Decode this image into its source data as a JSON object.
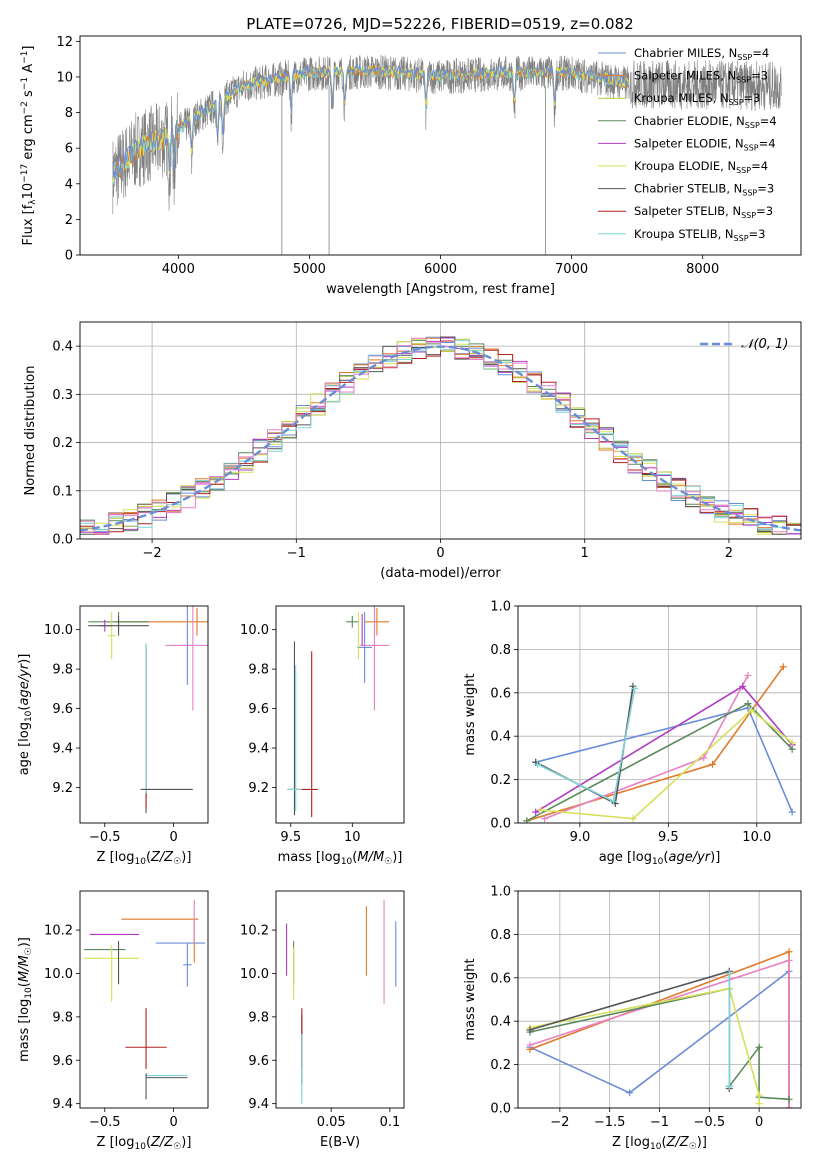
{
  "figure_title": "PLATE=0726, MJD=52226, FIBERID=0519, z=0.082",
  "colors": {
    "Chabrier MILES": "#6a8ed6",
    "Salpeter MILES": "#e07a2a",
    "Kroupa MILES": "#b8c23a",
    "Chabrier ELODIE": "#5a8a5a",
    "Salpeter ELODIE": "#b03cc4",
    "Kroupa ELODIE": "#d6e05a",
    "Chabrier STELIB": "#555555",
    "Salpeter STELIB": "#b02020",
    "Kroupa STELIB": "#7fd3d8",
    "miles_pink": "#e882c4",
    "normal_curve": "#6a8ed6"
  },
  "legend_spectrum": [
    {
      "name": "Chabrier MILES",
      "nssp": "4"
    },
    {
      "name": "Salpeter MILES",
      "nssp": "3"
    },
    {
      "name": "Kroupa MILES",
      "nssp": "3"
    },
    {
      "name": "Chabrier ELODIE",
      "nssp": "4"
    },
    {
      "name": "Salpeter ELODIE",
      "nssp": "4"
    },
    {
      "name": "Kroupa ELODIE",
      "nssp": "4"
    },
    {
      "name": "Chabrier STELIB",
      "nssp": "3"
    },
    {
      "name": "Salpeter STELIB",
      "nssp": "3"
    },
    {
      "name": "Kroupa STELIB",
      "nssp": "3"
    }
  ],
  "chart_data": [
    {
      "id": "spectrum",
      "type": "line",
      "xlabel": "wavelength [Angstrom, rest frame]",
      "ylabel": "Flux [f_λ 10^-17 erg cm^-2 s^-1 A^-1]",
      "xlim": [
        3250,
        8750
      ],
      "ylim": [
        0,
        12.3
      ],
      "xticks": [
        4000,
        5000,
        6000,
        7000,
        8000
      ],
      "yticks": [
        0,
        2,
        4,
        6,
        8,
        10,
        12
      ],
      "grid": false,
      "legend_position": "upper-right",
      "data_envelope": {
        "x": [
          3500,
          3700,
          3900,
          4200,
          4500,
          5000,
          5500,
          6000,
          6500,
          7000,
          7300,
          7450
        ],
        "y": [
          4.5,
          6.0,
          6.5,
          8.0,
          9.5,
          10.2,
          10.3,
          10.0,
          10.2,
          10.2,
          9.8,
          9.6
        ]
      }
    },
    {
      "id": "residuals",
      "type": "bar",
      "xlabel": "(data-model)/error",
      "ylabel": "Normed distribution",
      "xlim": [
        -2.5,
        2.5
      ],
      "ylim": [
        0,
        0.45
      ],
      "xticks": [
        -2,
        -1,
        0,
        1,
        2
      ],
      "yticks": [
        0.0,
        0.1,
        0.2,
        0.3,
        0.4
      ],
      "grid": true,
      "legend_position": "upper-right",
      "normal_label": "𝒩(0, 1)",
      "bin_width": 0.1
    },
    {
      "id": "age-Z",
      "type": "scatter",
      "xlabel": "Z [log10(Z/Z☉)]",
      "ylabel": "age [log10(age/yr)]",
      "xlim": [
        -0.68,
        0.25
      ],
      "ylim": [
        9.02,
        10.12
      ],
      "xticks": [
        -0.5,
        0.0
      ],
      "yticks": [
        9.2,
        9.4,
        9.6,
        9.8,
        10.0
      ]
    },
    {
      "id": "age-mass",
      "type": "scatter",
      "xlabel": "mass [log10(M/M☉)]",
      "ylabel": "",
      "xlim": [
        9.38,
        10.42
      ],
      "ylim": [
        9.02,
        10.12
      ],
      "xticks": [
        9.5,
        10.0
      ],
      "yticks": [
        9.2,
        9.4,
        9.6,
        9.8,
        10.0
      ]
    },
    {
      "id": "weight-age",
      "type": "line",
      "xlabel": "age [log10(age/yr)]",
      "ylabel": "mass weight",
      "xlim": [
        8.65,
        10.25
      ],
      "ylim": [
        0,
        1.0
      ],
      "xticks": [
        9.0,
        9.5,
        10.0
      ],
      "yticks": [
        0.0,
        0.2,
        0.4,
        0.6,
        0.8,
        1.0
      ],
      "grid": true,
      "series": [
        {
          "color": "Chabrier MILES",
          "x": [
            8.75,
            9.95,
            10.2
          ],
          "y": [
            0.28,
            0.53,
            0.05
          ]
        },
        {
          "color": "Salpeter MILES",
          "x": [
            8.7,
            9.75,
            10.15
          ],
          "y": [
            0.01,
            0.27,
            0.72
          ]
        },
        {
          "color": "miles_pink",
          "x": [
            8.8,
            9.7,
            9.95
          ],
          "y": [
            0.02,
            0.3,
            0.68
          ]
        },
        {
          "color": "Chabrier ELODIE",
          "x": [
            8.7,
            9.95,
            10.2
          ],
          "y": [
            0.01,
            0.55,
            0.34
          ]
        },
        {
          "color": "Salpeter ELODIE",
          "x": [
            8.75,
            9.92,
            10.2
          ],
          "y": [
            0.05,
            0.63,
            0.36
          ]
        },
        {
          "color": "Kroupa ELODIE",
          "x": [
            8.78,
            9.3,
            9.97,
            10.2
          ],
          "y": [
            0.06,
            0.02,
            0.52,
            0.37
          ]
        },
        {
          "color": "Chabrier STELIB",
          "x": [
            8.75,
            9.2,
            9.3
          ],
          "y": [
            0.28,
            0.09,
            0.63
          ]
        },
        {
          "color": "Kroupa STELIB",
          "x": [
            8.76,
            9.19,
            9.31
          ],
          "y": [
            0.27,
            0.1,
            0.62
          ]
        }
      ]
    },
    {
      "id": "mass-Z",
      "type": "scatter",
      "xlabel": "Z [log10(Z/Z☉)]",
      "ylabel": "mass [log10(M/M☉)]",
      "xlim": [
        -0.68,
        0.25
      ],
      "ylim": [
        9.38,
        10.38
      ],
      "xticks": [
        -0.5,
        0.0
      ],
      "yticks": [
        9.4,
        9.6,
        9.8,
        10.0,
        10.2
      ]
    },
    {
      "id": "mass-EBV",
      "type": "scatter",
      "xlabel": "E(B-V)",
      "ylabel": "",
      "xlim": [
        0.003,
        0.112
      ],
      "ylim": [
        9.38,
        10.38
      ],
      "xticks": [
        0.05,
        0.1
      ],
      "yticks": [
        9.4,
        9.6,
        9.8,
        10.0,
        10.2
      ]
    },
    {
      "id": "weight-Z",
      "type": "line",
      "xlabel": "Z [log10(Z/Z☉)]",
      "ylabel": "mass weight",
      "xlim": [
        -2.42,
        0.42
      ],
      "ylim": [
        0,
        1.0
      ],
      "xticks": [
        -2.0,
        -1.5,
        -1.0,
        -0.5,
        0.0
      ],
      "yticks": [
        0.0,
        0.2,
        0.4,
        0.6,
        0.8,
        1.0
      ],
      "grid": true,
      "series": [
        {
          "color": "Chabrier MILES",
          "x": [
            -2.3,
            -1.3,
            0.3,
            0.3
          ],
          "y": [
            0.28,
            0.07,
            0.63,
            0.0
          ]
        },
        {
          "color": "Salpeter MILES",
          "x": [
            -2.3,
            0.3,
            0.3
          ],
          "y": [
            0.27,
            0.72,
            0.0
          ]
        },
        {
          "color": "miles_pink",
          "x": [
            -2.3,
            0.3,
            0.3
          ],
          "y": [
            0.29,
            0.68,
            0.0
          ]
        },
        {
          "color": "Chabrier ELODIE",
          "x": [
            -2.3,
            -0.3,
            -0.3,
            0.0,
            0.0,
            0.3
          ],
          "y": [
            0.35,
            0.55,
            0.1,
            0.28,
            0.05,
            0.04
          ]
        },
        {
          "color": "Kroupa ELODIE",
          "x": [
            -2.3,
            -0.3,
            0.0,
            0.0
          ],
          "y": [
            0.37,
            0.55,
            0.06,
            0.02
          ]
        },
        {
          "color": "Chabrier STELIB",
          "x": [
            -2.3,
            -0.3,
            -0.3
          ],
          "y": [
            0.36,
            0.63,
            0.09
          ]
        },
        {
          "color": "Kroupa STELIB",
          "x": [
            -0.3,
            -0.3
          ],
          "y": [
            0.62,
            0.1
          ]
        }
      ]
    }
  ]
}
